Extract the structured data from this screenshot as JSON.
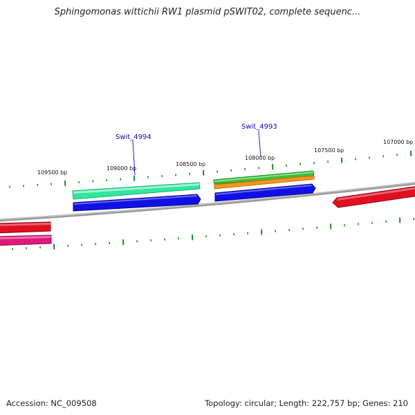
{
  "title": "Sphingomonas wittichii RW1 plasmid pSWIT02, complete sequenc...",
  "footer": {
    "accession": "Accession: NC_009508",
    "summary": "Topology: circular; Length: 222,757 bp; Genes: 210"
  },
  "ruler": {
    "labels": [
      "109500 bp",
      "109000 bp",
      "108500 bp",
      "108000 bp",
      "107500 bp",
      "107000 bp"
    ],
    "tick_color": "#1e8a1e"
  },
  "backbone_color": "#8a8a8a",
  "gene_labels": [
    "Swit_4994",
    "Swit_4993"
  ],
  "features": {
    "upper_left_green": "#3de8a0",
    "upper_right_green": "#3cbf3c",
    "orange": "#f5961e",
    "blue": "#1010e6",
    "red": "#e01020",
    "magenta": "#e0187a"
  }
}
